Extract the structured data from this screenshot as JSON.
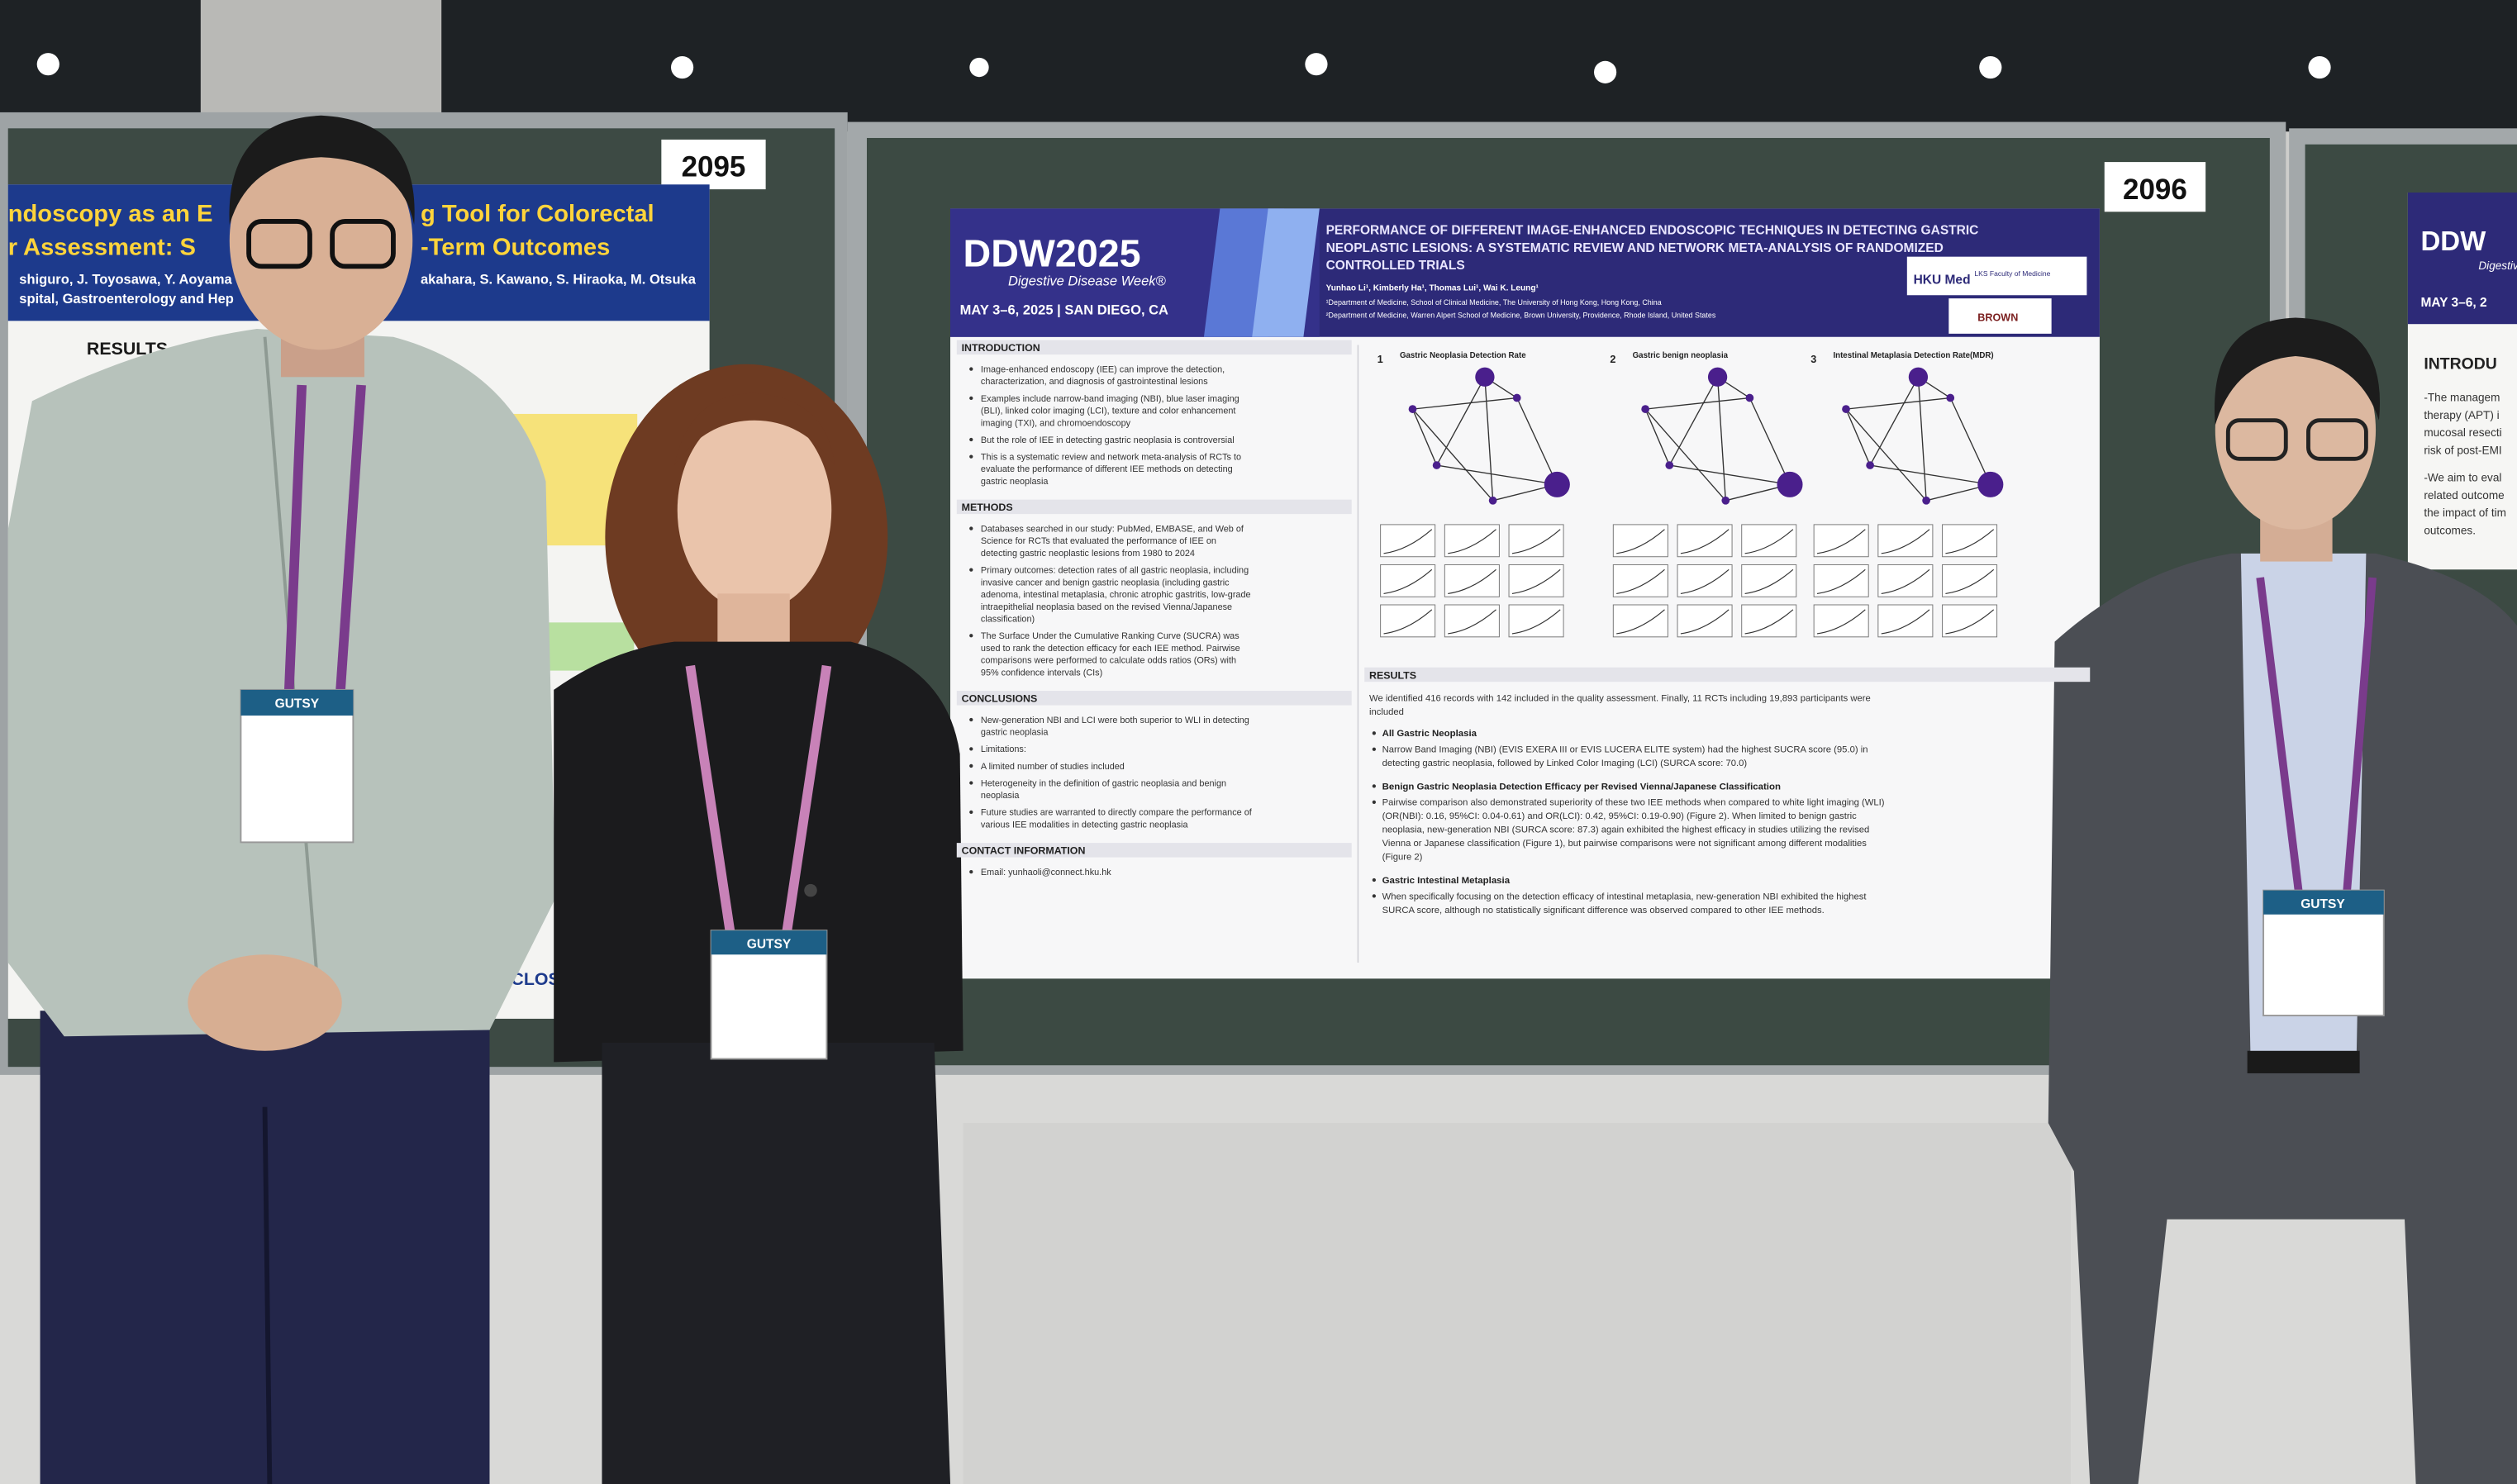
{
  "left_poster": {
    "number": "2095",
    "title_lines": [
      "ndoscopy as an E",
      "g Tool for Colorectal",
      "r Assessment: S",
      "-Term Outcomes"
    ],
    "authors": [
      "shiguro, J. Toyosawa, Y. Aoyama",
      "akahara, S. Kawano, S. Hiraoka, M. Otsuka"
    ],
    "affiliation": "spital, Gastroenterology and Hep",
    "results_heading": "RESULTS",
    "disclosure_heading": "DISCLOSUR"
  },
  "center_poster": {
    "number": "2096",
    "logo": "DDW2025",
    "logo_subtitle": "Digestive Disease Week®",
    "date": "MAY 3–6, 2025 | SAN DIEGO, CA",
    "title_lines": [
      "PERFORMANCE OF DIFFERENT IMAGE-ENHANCED ENDOSCOPIC TECHNIQUES IN DETECTING GASTRIC",
      "NEOPLASTIC LESIONS: A SYSTEMATIC REVIEW AND NETWORK META-ANALYSIS OF RANDOMIZED",
      "CONTROLLED TRIALS"
    ],
    "authors": "Yunhao Li¹, Kimberly Ha¹, Thomas Lui¹, Wai K. Leung¹",
    "affiliations": [
      "¹Department of Medicine, School of Clinical Medicine, The University of Hong Kong, Hong Kong, China",
      "²Department of Medicine, Warren Alpert School of Medicine, Brown University, Providence, Rhode Island, United States"
    ],
    "logos": [
      "HKU Med",
      "LKS Faculty of Medicine",
      "BROWN"
    ],
    "sections": [
      {
        "heading": "INTRODUCTION",
        "bullets": [
          [
            "Image-enhanced endoscopy (IEE) can improve the detection,",
            "characterization, and diagnosis of gastrointestinal lesions"
          ],
          [
            "Examples include narrow-band imaging (NBI), blue laser imaging",
            "(BLI), linked color imaging (LCI), texture and color enhancement",
            "imaging (TXI), and chromoendoscopy"
          ],
          [
            "But the role of IEE in detecting gastric neoplasia is controversial"
          ],
          [
            "This is a systematic review and network meta-analysis of RCTs to",
            "evaluate the performance of different IEE methods on detecting",
            "gastric neoplasia"
          ]
        ]
      },
      {
        "heading": "METHODS",
        "bullets": [
          [
            "Databases searched in our study: PubMed, EMBASE, and Web of",
            "Science for RCTs that evaluated the performance of IEE on",
            "detecting gastric neoplastic lesions  from 1980 to 2024"
          ],
          [
            "Primary outcomes: detection rates of all gastric neoplasia, including",
            "invasive cancer and benign gastric neoplasia (including gastric",
            "adenoma, intestinal metaplasia, chronic atrophic gastritis, low-grade",
            "intraepithelial neoplasia based on the revised Vienna/Japanese",
            "classification)"
          ],
          [
            "The Surface Under the Cumulative Ranking Curve (SUCRA) was",
            "used to rank the detection efficacy for each IEE method. Pairwise",
            "comparisons were performed to calculate odds ratios (ORs) with",
            "95% confidence intervals (CIs)"
          ]
        ]
      },
      {
        "heading": "CONCLUSIONS",
        "bullets": [
          [
            "New-generation NBI and LCI were both superior to WLI in detecting",
            "gastric neoplasia"
          ],
          [
            "Limitations:"
          ],
          [
            "A limited number of studies included"
          ],
          [
            "Heterogeneity in the definition of gastric neoplasia and benign",
            "neoplasia"
          ],
          [
            "Future studies are warranted to directly compare the performance of",
            "various IEE modalities in detecting gastric neoplasia"
          ]
        ]
      },
      {
        "heading": "CONTACT INFORMATION",
        "bullets": [
          [
            "Email: yunhaoli@connect.hku.hk"
          ]
        ]
      }
    ],
    "figures": [
      {
        "number": "1",
        "title": "Gastric Neoplasia Detection Rate"
      },
      {
        "number": "2",
        "title": "Gastric benign neoplasia"
      },
      {
        "number": "3",
        "title": "Intestinal Metaplasia Detection Rate(MDR)"
      }
    ],
    "results": {
      "heading": "RESULTS",
      "intro": [
        "We identified 416 records with 142 included in the quality assessment. Finally, 11 RCTs including 19,893 participants were",
        "included"
      ],
      "subsections": [
        {
          "heading": "All Gastric Neoplasia",
          "lines": [
            "Narrow Band Imaging (NBI) (EVIS EXERA III or EVIS LUCERA ELITE system) had the highest SUCRA score (95.0) in",
            "detecting gastric neoplasia, followed by Linked Color Imaging (LCI) (SURCA score: 70.0)"
          ]
        },
        {
          "heading": "Benign Gastric Neoplasia Detection Efficacy per Revised Vienna/Japanese Classification",
          "lines": [
            "Pairwise comparison also demonstrated superiority of these two IEE methods when compared to white light imaging (WLI)",
            "(OR(NBI): 0.16, 95%CI: 0.04-0.61) and OR(LCI): 0.42, 95%CI: 0.19-0.90) (Figure 2). When limited to benign gastric",
            "neoplasia, new-generation NBI (SURCA score: 87.3) again exhibited the highest efficacy in studies utilizing the revised",
            "Vienna or Japanese classification (Figure 1), but pairwise comparisons were not significant among different modalities",
            "(Figure 2)"
          ]
        },
        {
          "heading": "Gastric Intestinal Metaplasia",
          "lines": [
            "When specifically focusing on the detection efficacy of intestinal metaplasia, new-generation NBI exhibited the highest",
            "SURCA score, although no statistically significant difference was observed compared to other IEE methods."
          ]
        }
      ]
    }
  },
  "right_poster": {
    "logo": "DDW",
    "logo_subtitle": "Digestive",
    "date": "MAY 3–6, 2",
    "heading": "INTRODU",
    "lines": [
      "-The managem",
      "therapy (APT) i",
      "mucosal resecti",
      "risk of post-EMI",
      "-We aim to eval",
      "related outcome",
      "the impact of tim",
      "outcomes."
    ]
  },
  "badges": [
    "GUTSY",
    "GUTSY",
    "GUTSY"
  ]
}
